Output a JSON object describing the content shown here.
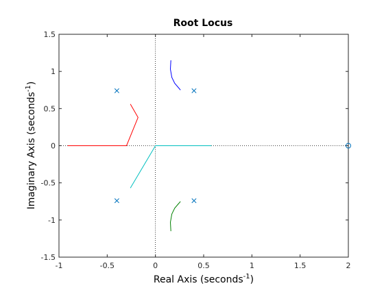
{
  "chart_data": {
    "type": "scatter",
    "title": "Root Locus",
    "xlabel": "Real Axis (seconds",
    "xlabel_sup": "-1",
    "xlabel_close": ")",
    "ylabel": "Imaginary Axis (seconds",
    "ylabel_sup": "-1",
    "ylabel_close": ")",
    "xlim": [
      -1,
      2
    ],
    "ylim": [
      -1.5,
      1.5
    ],
    "xticks": [
      -1,
      -0.5,
      0,
      0.5,
      1,
      1.5,
      2
    ],
    "xtick_labels": [
      "-1",
      "-0.5",
      "0",
      "0.5",
      "1",
      "1.5",
      "2"
    ],
    "yticks": [
      -1.5,
      -1,
      -0.5,
      0,
      0.5,
      1,
      1.5
    ],
    "ytick_labels": [
      "-1.5",
      "-1",
      "-0.5",
      "0",
      "0.5",
      "1",
      "1.5"
    ],
    "grid": false,
    "box": true,
    "zero_lines": "dotted",
    "series": [
      {
        "color": "#0000ff",
        "x": [
          0.16,
          0.155,
          0.17,
          0.2,
          0.24,
          0.26
        ],
        "y": [
          1.15,
          1.03,
          0.92,
          0.84,
          0.78,
          0.75
        ]
      },
      {
        "color": "#008000",
        "x": [
          0.16,
          0.155,
          0.17,
          0.2,
          0.24,
          0.26
        ],
        "y": [
          -1.15,
          -1.03,
          -0.92,
          -0.84,
          -0.78,
          -0.75
        ]
      },
      {
        "color": "#ff0000",
        "x": [
          -0.91,
          -0.3,
          -0.18,
          -0.26
        ],
        "y": [
          0,
          0,
          0.38,
          0.56
        ]
      },
      {
        "color": "#00bfbf",
        "x": [
          -0.26,
          0,
          0.58
        ],
        "y": [
          -0.57,
          0,
          0
        ]
      }
    ],
    "poles": {
      "marker": "x",
      "color": "#0072bd",
      "x": [
        -0.4,
        -0.4,
        0.4,
        0.4
      ],
      "y": [
        0.74,
        -0.74,
        0.74,
        -0.74
      ]
    },
    "zeros": {
      "marker": "o",
      "color": "#0072bd",
      "x": [
        2
      ],
      "y": [
        0
      ]
    }
  }
}
